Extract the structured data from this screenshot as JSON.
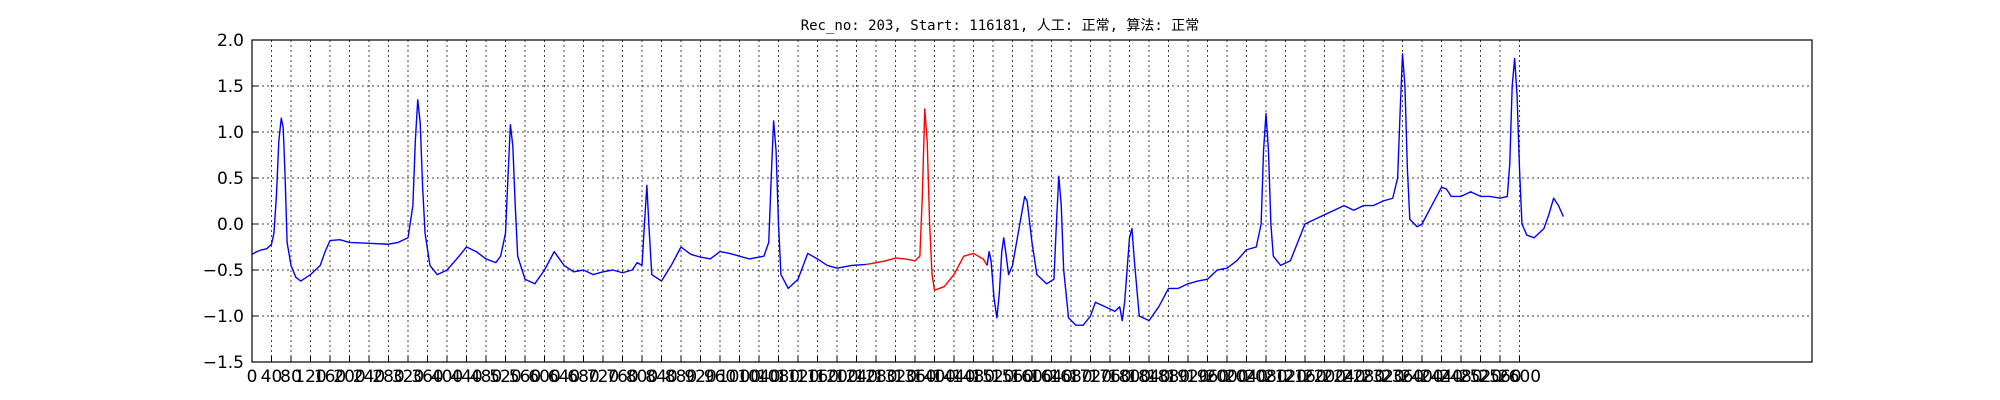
{
  "chart_data": {
    "type": "line",
    "title": "Rec_no: 203, Start: 116181, 人工: 正常, 算法: 正常",
    "xlabel": "",
    "ylabel": "",
    "xlim": [
      0,
      3200
    ],
    "ylim": [
      -1.5,
      2.0
    ],
    "grid": true,
    "yticks": [
      2.0,
      1.5,
      1.0,
      0.5,
      0.0,
      -0.5,
      -1.0,
      -1.5
    ],
    "ytick_labels": [
      "2.0",
      "1.5",
      "1.0",
      "0.5",
      "0.0",
      "−0.5",
      "−1.0",
      "−1.5"
    ],
    "xticks": [
      0,
      40,
      80,
      120,
      160,
      200,
      240,
      280,
      320,
      360,
      400,
      440,
      480,
      520,
      560,
      600,
      640,
      680,
      720,
      760,
      800,
      840,
      880,
      920,
      960,
      1000,
      1040,
      1080,
      1120,
      1160,
      1200,
      1240,
      1280,
      1320,
      1360,
      1400,
      1440,
      1480,
      1520,
      1560,
      1600,
      1640,
      1680,
      1720,
      1760,
      1800,
      1840,
      1880,
      1920,
      1960,
      2000,
      2040,
      2080,
      2120,
      2160,
      2200,
      2240,
      2280,
      2320,
      2360,
      2400,
      2440,
      2480,
      2520,
      2560,
      2600
    ],
    "xtick_labels": [
      "0",
      "40",
      "80",
      "120",
      "160",
      "200",
      "240",
      "280",
      "320",
      "360",
      "400",
      "440",
      "480",
      "520",
      "560",
      "600",
      "640",
      "680",
      "720",
      "760",
      "800",
      "840",
      "880",
      "920",
      "960",
      "1000",
      "1040",
      "1080",
      "1120",
      "1160",
      "1200",
      "1240",
      "1280",
      "1320",
      "1360",
      "1400",
      "1440",
      "1480",
      "1520",
      "1560",
      "1600",
      "1640",
      "1680",
      "1720",
      "1760",
      "1800",
      "1840",
      "1880",
      "1920",
      "1960",
      "2000",
      "2040",
      "2080",
      "2120",
      "2160",
      "2200",
      "2240",
      "2280",
      "2320",
      "2360",
      "2400",
      "2440",
      "2480",
      "2520",
      "2560",
      "2600"
    ],
    "x_minor_grid_step": 40,
    "series": [
      {
        "color": "#0000ff",
        "points": [
          [
            0,
            -0.33
          ],
          [
            10,
            -0.3
          ],
          [
            20,
            -0.28
          ],
          [
            30,
            -0.27
          ],
          [
            40,
            -0.22
          ],
          [
            45,
            -0.1
          ],
          [
            50,
            0.3
          ],
          [
            55,
            0.9
          ],
          [
            60,
            1.15
          ],
          [
            64,
            1.05
          ],
          [
            68,
            0.5
          ],
          [
            72,
            -0.2
          ],
          [
            80,
            -0.45
          ],
          [
            90,
            -0.58
          ],
          [
            100,
            -0.62
          ],
          [
            120,
            -0.55
          ],
          [
            140,
            -0.45
          ],
          [
            150,
            -0.3
          ],
          [
            160,
            -0.18
          ],
          [
            180,
            -0.17
          ],
          [
            200,
            -0.2
          ],
          [
            240,
            -0.21
          ],
          [
            280,
            -0.22
          ],
          [
            300,
            -0.2
          ],
          [
            320,
            -0.15
          ],
          [
            330,
            0.2
          ],
          [
            335,
            0.9
          ],
          [
            340,
            1.35
          ],
          [
            345,
            1.1
          ],
          [
            350,
            0.4
          ],
          [
            355,
            -0.1
          ],
          [
            365,
            -0.45
          ],
          [
            380,
            -0.55
          ],
          [
            400,
            -0.5
          ],
          [
            420,
            -0.38
          ],
          [
            440,
            -0.25
          ],
          [
            460,
            -0.3
          ],
          [
            480,
            -0.38
          ],
          [
            500,
            -0.42
          ],
          [
            510,
            -0.35
          ],
          [
            520,
            -0.1
          ],
          [
            525,
            0.5
          ],
          [
            530,
            1.08
          ],
          [
            535,
            0.85
          ],
          [
            540,
            0.2
          ],
          [
            545,
            -0.35
          ],
          [
            560,
            -0.6
          ],
          [
            580,
            -0.65
          ],
          [
            600,
            -0.5
          ],
          [
            620,
            -0.3
          ],
          [
            640,
            -0.45
          ],
          [
            660,
            -0.52
          ],
          [
            680,
            -0.5
          ],
          [
            700,
            -0.55
          ],
          [
            720,
            -0.52
          ],
          [
            740,
            -0.5
          ],
          [
            760,
            -0.53
          ],
          [
            780,
            -0.5
          ],
          [
            790,
            -0.42
          ],
          [
            800,
            -0.45
          ],
          [
            805,
            0.0
          ],
          [
            810,
            0.42
          ],
          [
            814,
            0.0
          ],
          [
            820,
            -0.55
          ],
          [
            840,
            -0.62
          ],
          [
            860,
            -0.45
          ],
          [
            880,
            -0.25
          ],
          [
            900,
            -0.33
          ],
          [
            920,
            -0.36
          ],
          [
            940,
            -0.38
          ],
          [
            960,
            -0.3
          ],
          [
            980,
            -0.32
          ],
          [
            1000,
            -0.35
          ],
          [
            1020,
            -0.38
          ],
          [
            1040,
            -0.36
          ],
          [
            1050,
            -0.35
          ],
          [
            1060,
            -0.2
          ],
          [
            1065,
            0.5
          ],
          [
            1070,
            1.12
          ],
          [
            1075,
            0.8
          ],
          [
            1080,
            0.0
          ],
          [
            1085,
            -0.55
          ],
          [
            1100,
            -0.7
          ],
          [
            1120,
            -0.6
          ],
          [
            1140,
            -0.32
          ],
          [
            1160,
            -0.38
          ],
          [
            1180,
            -0.45
          ],
          [
            1200,
            -0.48
          ],
          [
            1230,
            -0.45
          ],
          [
            1260,
            -0.44
          ]
        ]
      },
      {
        "color": "#ff0000",
        "points": [
          [
            1260,
            -0.44
          ],
          [
            1280,
            -0.42
          ],
          [
            1300,
            -0.4
          ],
          [
            1320,
            -0.37
          ],
          [
            1340,
            -0.38
          ],
          [
            1360,
            -0.4
          ],
          [
            1370,
            -0.35
          ],
          [
            1375,
            0.3
          ],
          [
            1380,
            1.25
          ],
          [
            1385,
            0.9
          ],
          [
            1390,
            0.0
          ],
          [
            1395,
            -0.55
          ],
          [
            1400,
            -0.72
          ],
          [
            1420,
            -0.68
          ],
          [
            1440,
            -0.55
          ],
          [
            1460,
            -0.35
          ],
          [
            1480,
            -0.32
          ],
          [
            1500,
            -0.38
          ],
          [
            1508,
            -0.45
          ]
        ]
      },
      {
        "color": "#0000ff",
        "points": [
          [
            1508,
            -0.45
          ],
          [
            1512,
            -0.3
          ],
          [
            1516,
            -0.4
          ],
          [
            1522,
            -0.8
          ],
          [
            1528,
            -1.02
          ],
          [
            1533,
            -0.75
          ],
          [
            1538,
            -0.3
          ],
          [
            1542,
            -0.15
          ],
          [
            1546,
            -0.3
          ],
          [
            1552,
            -0.55
          ],
          [
            1560,
            -0.45
          ],
          [
            1570,
            -0.15
          ],
          [
            1580,
            0.15
          ],
          [
            1585,
            0.3
          ],
          [
            1590,
            0.25
          ],
          [
            1600,
            -0.2
          ],
          [
            1610,
            -0.55
          ],
          [
            1630,
            -0.65
          ],
          [
            1645,
            -0.6
          ],
          [
            1650,
            0.0
          ],
          [
            1655,
            0.52
          ],
          [
            1660,
            0.2
          ],
          [
            1665,
            -0.5
          ],
          [
            1675,
            -1.02
          ],
          [
            1690,
            -1.1
          ],
          [
            1705,
            -1.1
          ],
          [
            1720,
            -1.0
          ],
          [
            1730,
            -0.85
          ],
          [
            1750,
            -0.9
          ],
          [
            1770,
            -0.95
          ],
          [
            1780,
            -0.9
          ],
          [
            1785,
            -1.05
          ],
          [
            1790,
            -0.85
          ],
          [
            1800,
            -0.15
          ],
          [
            1805,
            -0.05
          ],
          [
            1810,
            -0.4
          ],
          [
            1820,
            -1.0
          ],
          [
            1840,
            -1.05
          ],
          [
            1860,
            -0.9
          ],
          [
            1880,
            -0.7
          ],
          [
            1900,
            -0.7
          ],
          [
            1920,
            -0.65
          ],
          [
            1940,
            -0.62
          ],
          [
            1960,
            -0.6
          ],
          [
            1980,
            -0.5
          ],
          [
            2000,
            -0.48
          ],
          [
            2020,
            -0.4
          ],
          [
            2040,
            -0.28
          ],
          [
            2060,
            -0.25
          ],
          [
            2070,
            0.0
          ],
          [
            2075,
            0.8
          ],
          [
            2080,
            1.2
          ],
          [
            2085,
            0.8
          ],
          [
            2090,
            0.0
          ],
          [
            2095,
            -0.35
          ],
          [
            2110,
            -0.45
          ],
          [
            2130,
            -0.4
          ],
          [
            2145,
            -0.2
          ],
          [
            2160,
            0.0
          ],
          [
            2180,
            0.05
          ],
          [
            2200,
            0.1
          ],
          [
            2220,
            0.15
          ],
          [
            2240,
            0.2
          ],
          [
            2260,
            0.15
          ],
          [
            2280,
            0.2
          ],
          [
            2300,
            0.2
          ],
          [
            2320,
            0.25
          ],
          [
            2340,
            0.28
          ],
          [
            2350,
            0.5
          ],
          [
            2355,
            1.2
          ],
          [
            2360,
            1.85
          ],
          [
            2365,
            1.5
          ],
          [
            2370,
            0.6
          ],
          [
            2375,
            0.05
          ],
          [
            2390,
            -0.03
          ],
          [
            2400,
            0.0
          ],
          [
            2420,
            0.2
          ],
          [
            2440,
            0.4
          ],
          [
            2450,
            0.38
          ],
          [
            2460,
            0.3
          ],
          [
            2480,
            0.3
          ],
          [
            2500,
            0.35
          ],
          [
            2520,
            0.3
          ],
          [
            2540,
            0.3
          ],
          [
            2560,
            0.28
          ],
          [
            2575,
            0.3
          ],
          [
            2580,
            0.65
          ],
          [
            2585,
            1.5
          ],
          [
            2590,
            1.8
          ],
          [
            2595,
            1.4
          ],
          [
            2600,
            0.6
          ],
          [
            2605,
            0.0
          ],
          [
            2615,
            -0.12
          ],
          [
            2630,
            -0.15
          ],
          [
            2650,
            -0.05
          ],
          [
            2660,
            0.1
          ],
          [
            2670,
            0.28
          ],
          [
            2680,
            0.2
          ],
          [
            2690,
            0.08
          ]
        ]
      }
    ]
  }
}
